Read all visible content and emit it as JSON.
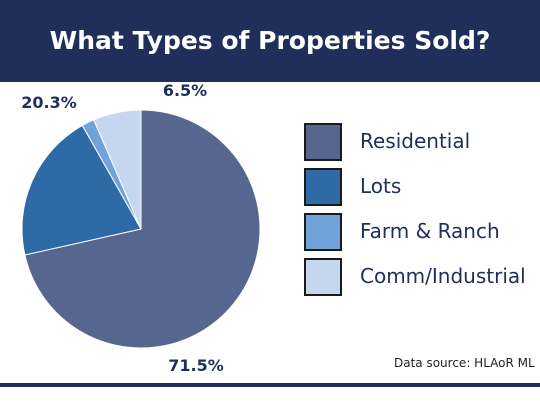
{
  "title": "What Types of Properties Sold?",
  "source": "Data source: HLAoR ML",
  "chart_data": {
    "type": "pie",
    "title": "What Types of Properties Sold?",
    "categories": [
      "Residential",
      "Lots",
      "Farm & Ranch",
      "Comm/Industrial"
    ],
    "values": [
      71.5,
      20.3,
      1.7,
      6.5
    ],
    "data_labels": [
      "71.5%",
      "20.3%",
      "",
      "6.5%"
    ],
    "colors": [
      "#56678f",
      "#2e6aa6",
      "#6fa3d9",
      "#c5d7ee"
    ],
    "legend_position": "right"
  }
}
